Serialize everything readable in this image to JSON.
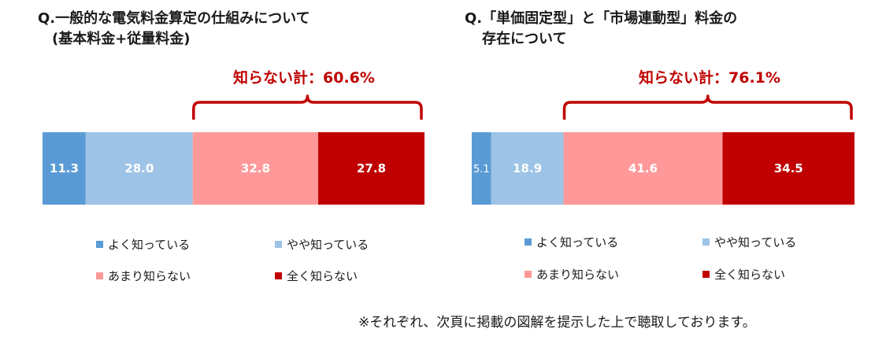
{
  "colors": {
    "yoku": "#5b9bd5",
    "yaya": "#9dc3e6",
    "amari": "#ff9999",
    "mattaku": "#c00000",
    "brace": "#c00000"
  },
  "legend_labels": [
    "よく知っている",
    "やや知っている",
    "あまり知らない",
    "全く知らない"
  ],
  "chart_data": [
    {
      "type": "bar",
      "orientation": "horizontal-stacked-100",
      "title_line1": "Q.一般的な電気料金算定の仕組みについて",
      "title_line2": "(基本料金+従量料金)",
      "series": [
        {
          "name": "よく知っている",
          "value": 11.3,
          "label": "11.3"
        },
        {
          "name": "やや知っている",
          "value": 28.0,
          "label": "28.0"
        },
        {
          "name": "あまり知らない",
          "value": 32.8,
          "label": "32.8"
        },
        {
          "name": "全く知らない",
          "value": 27.8,
          "label": "27.8"
        }
      ],
      "brace_label": "知らない計：60.6%"
    },
    {
      "type": "bar",
      "orientation": "horizontal-stacked-100",
      "title_line1": "Q.「単価固定型」と「市場連動型」料金の",
      "title_line2": "存在について",
      "series": [
        {
          "name": "よく知っている",
          "value": 5.1,
          "label": "5.1"
        },
        {
          "name": "やや知っている",
          "value": 18.9,
          "label": "18.9"
        },
        {
          "name": "あまり知らない",
          "value": 41.6,
          "label": "41.6"
        },
        {
          "name": "全く知らない",
          "value": 34.5,
          "label": "34.5"
        }
      ],
      "brace_label": "知らない計：76.1%"
    }
  ],
  "footnote": "※それぞれ、次頁に掲載の図解を提示した上で聴取しております。"
}
